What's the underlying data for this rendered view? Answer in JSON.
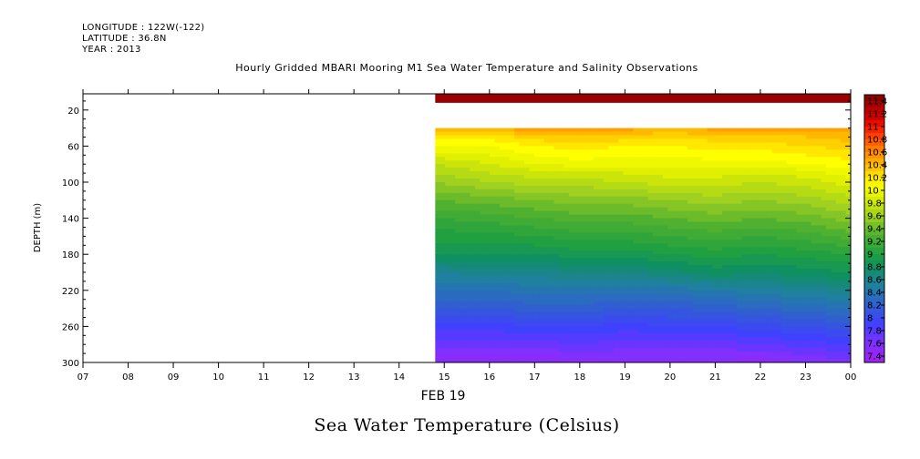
{
  "header": {
    "longitude": "LONGITUDE : 122W(-122)",
    "latitude": "LATITUDE : 36.8N",
    "year": "YEAR : 2013"
  },
  "chart_data": {
    "type": "heatmap",
    "title": "Hourly Gridded MBARI Mooring M1 Sea Water Temperature and Salinity Observations",
    "subtitle": "Sea Water Temperature (Celsius)",
    "ylabel": "DEPTH (m)",
    "xlabel_date": "FEB 19",
    "x_hours": [
      7,
      8,
      9,
      10,
      11,
      12,
      13,
      14,
      15,
      16,
      17,
      18,
      19,
      20,
      21,
      22,
      23,
      24
    ],
    "x_tick_labels": [
      "07",
      "08",
      "09",
      "10",
      "11",
      "12",
      "13",
      "14",
      "15",
      "16",
      "17",
      "18",
      "19",
      "20",
      "21",
      "22",
      "23",
      "00"
    ],
    "xlim": [
      7,
      24
    ],
    "y_ticks": [
      20,
      60,
      100,
      140,
      180,
      220,
      260,
      300
    ],
    "y_tick_labels": [
      "20",
      "60",
      "100",
      "140",
      "180",
      "220",
      "260",
      "300"
    ],
    "ylim": [
      300,
      2
    ],
    "data_start_hour": 14.8,
    "surface_layer": {
      "depth_range": [
        2,
        12
      ],
      "value": 11.4
    },
    "data_gap_depth_range": [
      12,
      40
    ],
    "profile_hours": [
      14.8,
      16,
      17,
      18,
      19,
      20,
      21,
      22,
      23,
      24
    ],
    "profile_depths": [
      40,
      50,
      60,
      70,
      80,
      90,
      100,
      120,
      140,
      160,
      180,
      200,
      220,
      240,
      260,
      280,
      300
    ],
    "temperature_grid": [
      [
        10.45,
        10.45,
        10.55,
        10.6,
        10.5,
        10.45,
        10.5,
        10.5,
        10.5,
        10.5
      ],
      [
        10.15,
        10.2,
        10.3,
        10.35,
        10.3,
        10.25,
        10.3,
        10.3,
        10.35,
        10.4
      ],
      [
        10.05,
        10.05,
        10.15,
        10.2,
        10.15,
        10.15,
        10.2,
        10.2,
        10.25,
        10.3
      ],
      [
        9.9,
        9.95,
        10.05,
        10.1,
        10.05,
        10.05,
        10.1,
        10.1,
        10.15,
        10.2
      ],
      [
        9.75,
        9.85,
        9.95,
        10.0,
        10.0,
        10.0,
        10.0,
        10.0,
        10.05,
        10.1
      ],
      [
        9.65,
        9.75,
        9.8,
        9.85,
        9.85,
        9.9,
        9.9,
        9.85,
        9.9,
        10.0
      ],
      [
        9.55,
        9.65,
        9.7,
        9.7,
        9.75,
        9.8,
        9.8,
        9.75,
        9.8,
        9.9
      ],
      [
        9.35,
        9.4,
        9.45,
        9.5,
        9.5,
        9.55,
        9.6,
        9.55,
        9.6,
        9.7
      ],
      [
        9.15,
        9.2,
        9.25,
        9.3,
        9.3,
        9.35,
        9.4,
        9.35,
        9.4,
        9.5
      ],
      [
        9.0,
        9.0,
        9.05,
        9.1,
        9.1,
        9.15,
        9.2,
        9.15,
        9.2,
        9.3
      ],
      [
        8.85,
        8.85,
        8.85,
        8.9,
        8.9,
        8.95,
        9.0,
        8.95,
        9.0,
        9.05
      ],
      [
        8.55,
        8.6,
        8.6,
        8.65,
        8.65,
        8.7,
        8.8,
        8.75,
        8.8,
        8.85
      ],
      [
        8.35,
        8.35,
        8.4,
        8.4,
        8.4,
        8.4,
        8.45,
        8.5,
        8.55,
        8.6
      ],
      [
        8.15,
        8.15,
        8.2,
        8.2,
        8.15,
        8.15,
        8.2,
        8.25,
        8.3,
        8.35
      ],
      [
        7.9,
        7.9,
        7.95,
        7.95,
        7.9,
        7.95,
        7.95,
        8.0,
        8.05,
        8.1
      ],
      [
        7.7,
        7.7,
        7.7,
        7.75,
        7.7,
        7.7,
        7.7,
        7.75,
        7.8,
        7.85
      ],
      [
        7.45,
        7.45,
        7.45,
        7.5,
        7.5,
        7.5,
        7.5,
        7.45,
        7.55,
        7.6
      ]
    ],
    "colorbar_labels": [
      "11.4",
      "11.2",
      "11",
      "10.8",
      "10.6",
      "10.4",
      "10.2",
      "10",
      "9.8",
      "9.6",
      "9.4",
      "9.2",
      "9",
      "8.8",
      "8.6",
      "8.4",
      "8.2",
      "8",
      "7.8",
      "7.6",
      "7.4"
    ],
    "colorbar_min": 7.3,
    "colorbar_max": 11.5,
    "colormap": [
      [
        7.3,
        "#a020f0"
      ],
      [
        7.6,
        "#8030ff"
      ],
      [
        7.9,
        "#4040ff"
      ],
      [
        8.2,
        "#3060d0"
      ],
      [
        8.5,
        "#2080a0"
      ],
      [
        8.8,
        "#109060"
      ],
      [
        9.0,
        "#20a040"
      ],
      [
        9.3,
        "#50b030"
      ],
      [
        9.6,
        "#a0d020"
      ],
      [
        9.9,
        "#e0f000"
      ],
      [
        10.1,
        "#ffff00"
      ],
      [
        10.3,
        "#ffd000"
      ],
      [
        10.5,
        "#ffa000"
      ],
      [
        10.7,
        "#ff7000"
      ],
      [
        10.9,
        "#ff3000"
      ],
      [
        11.1,
        "#e00000"
      ],
      [
        11.5,
        "#800000"
      ]
    ]
  }
}
